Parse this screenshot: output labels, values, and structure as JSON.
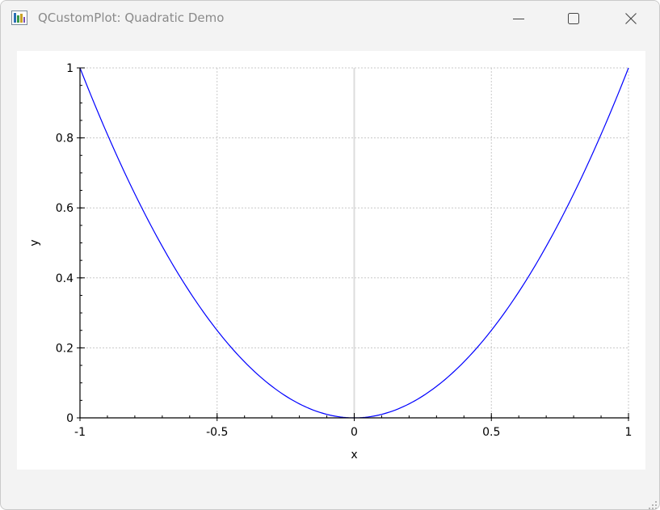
{
  "window": {
    "title": "QCustomPlot: Quadratic Demo",
    "icon": "app-icon",
    "controls": [
      "minimize-icon",
      "maximize-icon",
      "close-icon"
    ]
  },
  "chart_data": {
    "type": "line",
    "title": "",
    "xlabel": "x",
    "ylabel": "y",
    "xlim": [
      -1,
      1
    ],
    "ylim": [
      0,
      1
    ],
    "x_ticks": [
      "-1",
      "-0.5",
      "0",
      "0.5",
      "1"
    ],
    "y_ticks": [
      "0",
      "0.2",
      "0.4",
      "0.6",
      "0.8",
      "1"
    ],
    "grid": true,
    "zero_line": true,
    "legend": "none",
    "series": [
      {
        "function": "y = x^2",
        "color": "#0000ff",
        "x": [
          -1,
          -0.9,
          -0.8,
          -0.7,
          -0.6,
          -0.5,
          -0.4,
          -0.3,
          -0.2,
          -0.1,
          0,
          0.1,
          0.2,
          0.3,
          0.4,
          0.5,
          0.6,
          0.7,
          0.8,
          0.9,
          1
        ],
        "y": [
          1,
          0.81,
          0.64,
          0.49,
          0.36,
          0.25,
          0.16,
          0.09,
          0.04,
          0.01,
          0,
          0.01,
          0.04,
          0.09,
          0.16,
          0.25,
          0.36,
          0.49,
          0.64,
          0.81,
          1
        ]
      }
    ]
  },
  "colors": {
    "window_bg": "#f3f3f3",
    "plot_bg": "#ffffff",
    "grid": "#c8c8c8",
    "zero_line": "#dcdcdc",
    "curve": "#0000ff",
    "axis": "#000000",
    "title_text": "#8a8a8a"
  }
}
